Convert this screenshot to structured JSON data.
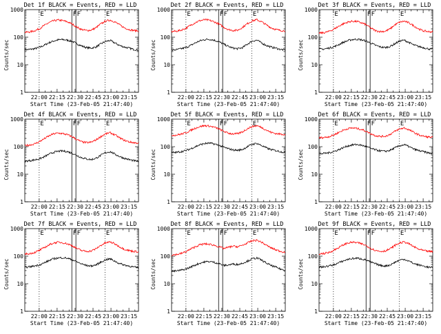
{
  "figure": {
    "x_tick_labels": [
      "22:00",
      "22:15",
      "22:30",
      "22:45",
      "23:00",
      "23:15"
    ],
    "y_tick_labels": [
      "1000",
      "100",
      "10",
      "1"
    ],
    "ylabel": "Counts/sec",
    "xlabel": "Start Time (23-Feb-05 21:47:40)",
    "flag_labels": [
      "E",
      "F",
      "F",
      "E"
    ],
    "colors": {
      "events": "#000000",
      "lld": "#ff0000",
      "axes": "#000000",
      "background": "#ffffff"
    }
  },
  "chart_data": [
    {
      "type": "line",
      "title": "Det 1f BLACK = Events, RED = LLD",
      "xlabel": "Start Time (23-Feb-05 21:47:40)",
      "ylabel": "Counts/sec",
      "yscale": "log",
      "ylim": [
        1,
        1000
      ],
      "x_range_min": [
        0,
        95
      ],
      "x_ticks": [
        "22:00",
        "22:15",
        "22:30",
        "22:45",
        "23:00",
        "23:15"
      ],
      "dotted_vlines_min": [
        12,
        67
      ],
      "solid_vlines_min": [
        39.3,
        42.7
      ],
      "series": [
        {
          "name": "Events",
          "color": "#000000",
          "values": [
            35,
            36,
            38,
            42,
            50,
            62,
            72,
            80,
            82,
            78,
            70,
            58,
            48,
            42,
            40,
            44,
            56,
            70,
            76,
            62,
            50,
            44,
            40,
            36,
            34
          ]
        },
        {
          "name": "LLD",
          "color": "#ff0000",
          "values": [
            150,
            155,
            170,
            200,
            260,
            330,
            390,
            420,
            400,
            360,
            300,
            230,
            190,
            175,
            180,
            220,
            300,
            380,
            420,
            360,
            280,
            220,
            190,
            175,
            170
          ]
        }
      ]
    },
    {
      "type": "line",
      "title": "Det 2f BLACK = Events, RED = LLD",
      "xlabel": "Start Time (23-Feb-05 21:47:40)",
      "ylabel": "Counts/sec",
      "yscale": "log",
      "ylim": [
        1,
        1000
      ],
      "x_range_min": [
        0,
        95
      ],
      "x_ticks": [
        "22:00",
        "22:15",
        "22:30",
        "22:45",
        "23:00",
        "23:15"
      ],
      "dotted_vlines_min": [
        12,
        67
      ],
      "solid_vlines_min": [
        39.3,
        42.7
      ],
      "series": [
        {
          "name": "Events",
          "color": "#000000",
          "values": [
            34,
            35,
            38,
            42,
            50,
            62,
            74,
            82,
            84,
            78,
            68,
            56,
            46,
            40,
            38,
            42,
            56,
            72,
            78,
            62,
            50,
            44,
            40,
            36,
            34
          ]
        },
        {
          "name": "LLD",
          "color": "#ff0000",
          "values": [
            160,
            165,
            180,
            210,
            270,
            340,
            400,
            430,
            410,
            360,
            300,
            230,
            190,
            175,
            180,
            230,
            310,
            390,
            430,
            360,
            280,
            220,
            190,
            175,
            170
          ]
        }
      ]
    },
    {
      "type": "line",
      "title": "Det 3f BLACK = Events, RED = LLD",
      "xlabel": "Start Time (23-Feb-05 21:47:40)",
      "ylabel": "Counts/sec",
      "yscale": "log",
      "ylim": [
        1,
        1000
      ],
      "x_range_min": [
        0,
        95
      ],
      "x_ticks": [
        "22:00",
        "22:15",
        "22:30",
        "22:45",
        "23:00",
        "23:15"
      ],
      "dotted_vlines_min": [
        12,
        67
      ],
      "solid_vlines_min": [
        39.3,
        42.7
      ],
      "series": [
        {
          "name": "Events",
          "color": "#000000",
          "values": [
            36,
            37,
            40,
            44,
            52,
            64,
            74,
            82,
            84,
            80,
            72,
            60,
            50,
            44,
            42,
            46,
            58,
            72,
            78,
            64,
            52,
            46,
            42,
            38,
            36
          ]
        },
        {
          "name": "LLD",
          "color": "#ff0000",
          "values": [
            140,
            145,
            160,
            190,
            240,
            300,
            350,
            380,
            370,
            330,
            280,
            210,
            170,
            160,
            165,
            200,
            280,
            350,
            380,
            330,
            260,
            200,
            170,
            160,
            155
          ]
        }
      ]
    },
    {
      "type": "line",
      "title": "Det 4f BLACK = Events, RED = LLD",
      "xlabel": "Start Time (23-Feb-05 21:47:40)",
      "ylabel": "Counts/sec",
      "yscale": "log",
      "ylim": [
        1,
        1000
      ],
      "x_range_min": [
        0,
        95
      ],
      "x_ticks": [
        "22:00",
        "22:15",
        "22:30",
        "22:45",
        "23:00",
        "23:15"
      ],
      "dotted_vlines_min": [
        12,
        67
      ],
      "solid_vlines_min": [
        39.3,
        42.7
      ],
      "series": [
        {
          "name": "Events",
          "color": "#000000",
          "values": [
            30,
            31,
            33,
            36,
            42,
            52,
            62,
            68,
            70,
            66,
            58,
            48,
            40,
            36,
            34,
            38,
            48,
            60,
            66,
            54,
            44,
            38,
            34,
            31,
            29
          ]
        },
        {
          "name": "LLD",
          "color": "#ff0000",
          "values": [
            110,
            115,
            125,
            150,
            190,
            240,
            290,
            310,
            300,
            270,
            230,
            180,
            150,
            140,
            145,
            175,
            230,
            290,
            320,
            270,
            210,
            170,
            150,
            140,
            135
          ]
        }
      ]
    },
    {
      "type": "line",
      "title": "Det 5f BLACK = Events, RED = LLD",
      "xlabel": "Start Time (23-Feb-05 21:47:40)",
      "ylabel": "Counts/sec",
      "yscale": "log",
      "ylim": [
        1,
        1000
      ],
      "x_range_min": [
        0,
        95
      ],
      "x_ticks": [
        "22:00",
        "22:15",
        "22:30",
        "22:45",
        "23:00",
        "23:15"
      ],
      "dotted_vlines_min": [
        12,
        67
      ],
      "solid_vlines_min": [
        39.3,
        42.7
      ],
      "series": [
        {
          "name": "Events",
          "color": "#000000",
          "values": [
            60,
            62,
            66,
            72,
            84,
            100,
            118,
            130,
            134,
            126,
            112,
            96,
            84,
            76,
            74,
            80,
            100,
            122,
            132,
            110,
            90,
            78,
            72,
            66,
            62
          ]
        },
        {
          "name": "LLD",
          "color": "#ff0000",
          "values": [
            260,
            265,
            285,
            320,
            390,
            470,
            540,
            580,
            560,
            510,
            440,
            360,
            310,
            290,
            295,
            350,
            450,
            540,
            580,
            500,
            400,
            330,
            300,
            285,
            280
          ]
        }
      ]
    },
    {
      "type": "line",
      "title": "Det 6f BLACK = Events, RED = LLD",
      "xlabel": "Start Time (23-Feb-05 21:47:40)",
      "ylabel": "Counts/sec",
      "yscale": "log",
      "ylim": [
        1,
        1000
      ],
      "x_range_min": [
        0,
        95
      ],
      "x_ticks": [
        "22:00",
        "22:15",
        "22:30",
        "22:45",
        "23:00",
        "23:15"
      ],
      "dotted_vlines_min": [
        12,
        67
      ],
      "solid_vlines_min": [
        39.3,
        42.7
      ],
      "series": [
        {
          "name": "Events",
          "color": "#000000",
          "values": [
            55,
            57,
            60,
            66,
            76,
            90,
            106,
            116,
            120,
            112,
            100,
            86,
            76,
            70,
            68,
            74,
            90,
            108,
            118,
            100,
            82,
            72,
            66,
            60,
            56
          ]
        },
        {
          "name": "LLD",
          "color": "#ff0000",
          "values": [
            210,
            215,
            230,
            260,
            320,
            390,
            450,
            480,
            460,
            420,
            360,
            290,
            250,
            235,
            240,
            280,
            360,
            440,
            480,
            410,
            330,
            270,
            240,
            225,
            220
          ]
        }
      ]
    },
    {
      "type": "line",
      "title": "Det 7f BLACK = Events, RED = LLD",
      "xlabel": "Start Time (23-Feb-05 21:47:40)",
      "ylabel": "Counts/sec",
      "yscale": "log",
      "ylim": [
        1,
        1000
      ],
      "x_range_min": [
        0,
        95
      ],
      "x_ticks": [
        "22:00",
        "22:15",
        "22:30",
        "22:45",
        "23:00",
        "23:15"
      ],
      "dotted_vlines_min": [
        12,
        67
      ],
      "solid_vlines_min": [
        39.3,
        42.7
      ],
      "series": [
        {
          "name": "Events",
          "color": "#000000",
          "values": [
            40,
            41,
            44,
            48,
            56,
            68,
            80,
            86,
            88,
            84,
            74,
            62,
            52,
            46,
            44,
            48,
            60,
            74,
            80,
            66,
            54,
            48,
            44,
            40,
            38
          ]
        },
        {
          "name": "LLD",
          "color": "#ff0000",
          "values": [
            120,
            124,
            135,
            160,
            200,
            250,
            300,
            320,
            310,
            280,
            240,
            190,
            160,
            150,
            155,
            185,
            245,
            300,
            330,
            280,
            220,
            180,
            160,
            150,
            145
          ]
        }
      ]
    },
    {
      "type": "line",
      "title": "Det 8f BLACK = Events, RED = LLD",
      "xlabel": "Start Time (23-Feb-05 21:47:40)",
      "ylabel": "Counts/sec",
      "yscale": "log",
      "ylim": [
        1,
        1000
      ],
      "x_range_min": [
        0,
        95
      ],
      "x_ticks": [
        "22:00",
        "22:15",
        "22:30",
        "22:45",
        "23:00",
        "23:15"
      ],
      "dotted_vlines_min": [
        12,
        67
      ],
      "solid_vlines_min": [
        39.3,
        42.7
      ],
      "series": [
        {
          "name": "Events",
          "color": "#000000",
          "values": [
            28,
            29,
            31,
            34,
            40,
            48,
            56,
            62,
            64,
            60,
            54,
            46,
            48,
            52,
            50,
            56,
            66,
            80,
            86,
            72,
            56,
            46,
            40,
            34,
            30
          ]
        },
        {
          "name": "LLD",
          "color": "#ff0000",
          "values": [
            110,
            115,
            125,
            145,
            180,
            220,
            260,
            280,
            270,
            250,
            220,
            190,
            210,
            230,
            220,
            250,
            300,
            360,
            380,
            320,
            250,
            200,
            170,
            150,
            140
          ]
        }
      ]
    },
    {
      "type": "line",
      "title": "Det 9f BLACK = Events, RED = LLD",
      "xlabel": "Start Time (23-Feb-05 21:47:40)",
      "ylabel": "Counts/sec",
      "yscale": "log",
      "ylim": [
        1,
        1000
      ],
      "x_range_min": [
        0,
        95
      ],
      "x_ticks": [
        "22:00",
        "22:15",
        "22:30",
        "22:45",
        "23:00",
        "23:15"
      ],
      "dotted_vlines_min": [
        12,
        67
      ],
      "solid_vlines_min": [
        39.3,
        42.7
      ],
      "series": [
        {
          "name": "Events",
          "color": "#000000",
          "values": [
            40,
            41,
            44,
            48,
            56,
            66,
            76,
            82,
            84,
            80,
            72,
            60,
            52,
            46,
            44,
            48,
            60,
            72,
            78,
            66,
            54,
            48,
            44,
            40,
            38
          ]
        },
        {
          "name": "LLD",
          "color": "#ff0000",
          "values": [
            120,
            125,
            135,
            160,
            200,
            250,
            300,
            320,
            310,
            280,
            240,
            190,
            160,
            150,
            155,
            185,
            245,
            300,
            330,
            280,
            220,
            180,
            160,
            150,
            145
          ]
        }
      ]
    }
  ]
}
